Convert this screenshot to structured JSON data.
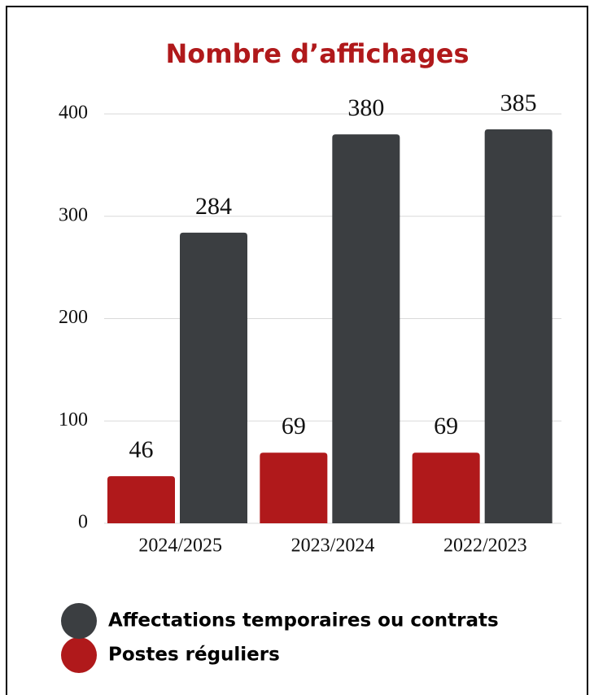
{
  "chart_data": {
    "type": "bar",
    "title": "Nombre d’affichages",
    "categories": [
      "2024/2025",
      "2023/2024",
      "2022/2023"
    ],
    "series": [
      {
        "name": "Postes réguliers",
        "color": "#b0191b",
        "values": [
          46,
          69,
          69
        ]
      },
      {
        "name": "Affectations temporaires ou contrats",
        "color": "#3b3e41",
        "values": [
          284,
          380,
          385
        ]
      }
    ],
    "ylim": [
      0,
      400
    ],
    "yticks": [
      0,
      100,
      200,
      300,
      400
    ],
    "grid": true
  }
}
